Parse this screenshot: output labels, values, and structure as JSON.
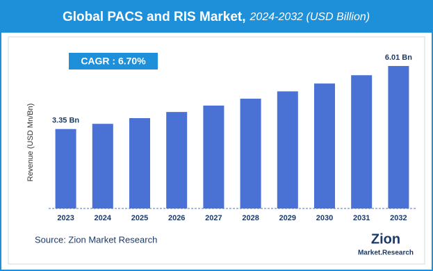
{
  "chart_data": {
    "type": "bar",
    "title": "Global PACS and RIS Market,",
    "subtitle": "2024-2032 (USD Billion)",
    "annotation": "CAGR : 6.70%",
    "y_label": "Revenue (USD Mn/Bn)",
    "source": "Source: Zion Market Research",
    "logo": {
      "name": "Zion",
      "tagline": "Market.Research"
    },
    "categories": [
      "2023",
      "2024",
      "2025",
      "2026",
      "2027",
      "2028",
      "2029",
      "2030",
      "2031",
      "2032"
    ],
    "values": [
      3.35,
      3.57,
      3.81,
      4.07,
      4.34,
      4.63,
      4.94,
      5.27,
      5.62,
      6.01
    ],
    "value_labels": [
      "3.35 Bn",
      null,
      null,
      null,
      null,
      null,
      null,
      null,
      null,
      "6.01 Bn"
    ],
    "color": "#4a72d4",
    "ylim": [
      0,
      6.8
    ]
  }
}
